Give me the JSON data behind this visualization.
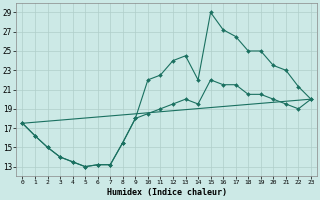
{
  "xlabel": "Humidex (Indice chaleur)",
  "xlim": [
    -0.5,
    23.5
  ],
  "ylim": [
    12,
    30
  ],
  "yticks": [
    13,
    15,
    17,
    19,
    21,
    23,
    25,
    27,
    29
  ],
  "xticks": [
    0,
    1,
    2,
    3,
    4,
    5,
    6,
    7,
    8,
    9,
    10,
    11,
    12,
    13,
    14,
    15,
    16,
    17,
    18,
    19,
    20,
    21,
    22,
    23
  ],
  "bg_color": "#cce9e6",
  "grid_color": "#b0ceca",
  "line_color": "#1a7060",
  "line1_x": [
    0,
    1,
    2,
    3,
    4,
    5,
    6,
    7,
    8,
    9,
    10,
    11,
    12,
    13,
    14,
    15,
    16,
    17,
    18,
    19,
    20,
    21,
    22,
    23
  ],
  "line1_y": [
    17.5,
    16.2,
    15.0,
    14.0,
    13.5,
    13.0,
    13.2,
    13.2,
    15.5,
    18.0,
    22.0,
    22.5,
    24.0,
    24.5,
    22.0,
    29.0,
    27.2,
    26.5,
    25.0,
    25.0,
    23.5,
    23.0,
    21.3,
    20.0
  ],
  "line2_x": [
    0,
    1,
    2,
    3,
    4,
    5,
    6,
    7,
    8,
    9,
    10,
    11,
    12,
    13,
    14,
    15,
    16,
    17,
    18,
    19,
    20,
    21,
    22,
    23
  ],
  "line2_y": [
    17.5,
    16.2,
    15.0,
    14.0,
    13.5,
    13.0,
    13.2,
    13.2,
    15.5,
    18.0,
    18.5,
    19.0,
    19.5,
    20.0,
    19.5,
    22.0,
    21.5,
    21.5,
    20.5,
    20.5,
    20.0,
    19.5,
    19.0,
    20.0
  ],
  "line3_x": [
    0,
    23
  ],
  "line3_y": [
    17.5,
    20.0
  ]
}
